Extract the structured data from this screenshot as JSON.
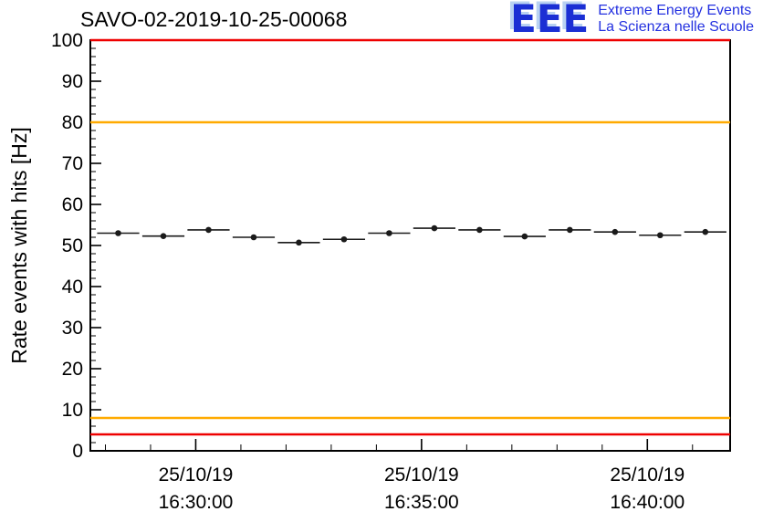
{
  "logo": {
    "acronym": "EEE",
    "line1": "Extreme Energy Events",
    "line2": "La Scienza nelle Scuole",
    "acronym_color": "#1b2fd4",
    "text_color": "#2431e0"
  },
  "chart_data": {
    "type": "scatter",
    "title": "SAVO-02-2019-10-25-00068",
    "xlabel": "",
    "ylabel": "Rate events with hits [Hz]",
    "ylim": [
      0,
      100
    ],
    "y_major_step": 10,
    "y_minor_step": 2,
    "grid": false,
    "legend": false,
    "x_axis_seconds_range": [
      0,
      850
    ],
    "x_minor_tick_start": 20,
    "x_minor_tick_step": 60,
    "x_major_ticks": [
      {
        "t": 140,
        "label_date": "25/10/19",
        "label_time": "16:30:00"
      },
      {
        "t": 440,
        "label_date": "25/10/19",
        "label_time": "16:35:00"
      },
      {
        "t": 740,
        "label_date": "25/10/19",
        "label_time": "16:40:00"
      }
    ],
    "points": {
      "t_seconds": [
        37,
        97,
        157,
        217,
        277,
        337,
        397,
        457,
        517,
        577,
        637,
        697,
        757,
        817
      ],
      "rate_hz": [
        53.0,
        52.3,
        53.8,
        52.0,
        50.7,
        51.5,
        53.0,
        54.2,
        53.8,
        52.2,
        53.8,
        53.3,
        52.5,
        53.3
      ],
      "t_halfwidth_seconds": 28,
      "rate_error_hz": 0.6,
      "marker_color": "#1a1a1a"
    },
    "reference_lines": [
      {
        "y": 100,
        "color": "#ee0000",
        "meaning": "upper alarm threshold"
      },
      {
        "y": 80,
        "color": "#ffaa00",
        "meaning": "upper warning threshold"
      },
      {
        "y": 8,
        "color": "#ffaa00",
        "meaning": "lower warning threshold"
      },
      {
        "y": 4,
        "color": "#ee0000",
        "meaning": "lower alarm threshold"
      }
    ]
  }
}
